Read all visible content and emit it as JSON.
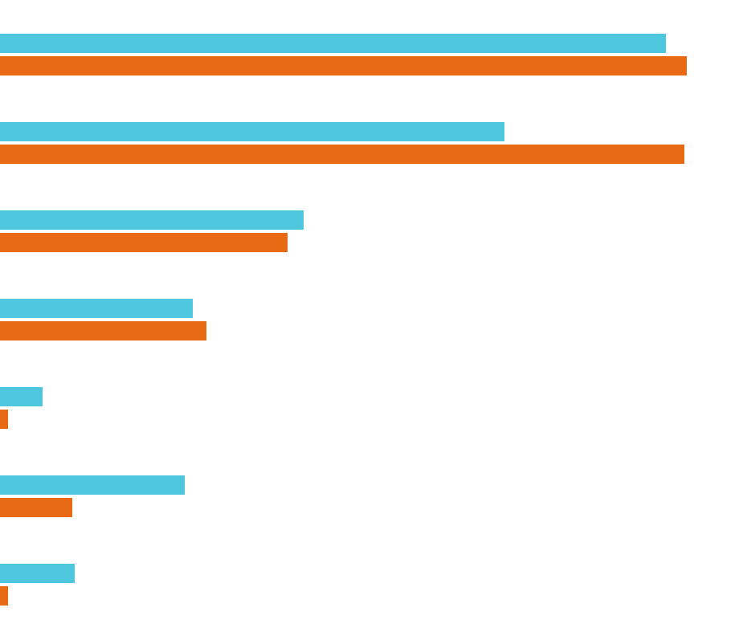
{
  "chart_data": {
    "type": "hbar",
    "categories": [
      null,
      null,
      null,
      null,
      null,
      null,
      null
    ],
    "series": [
      {
        "color": "#4dc6de",
        "values": [
          829,
          628,
          378,
          240,
          53,
          230,
          93
        ]
      },
      {
        "color": "#e96a14",
        "values": [
          855,
          852,
          358,
          257,
          10,
          90,
          10
        ]
      }
    ]
  }
}
